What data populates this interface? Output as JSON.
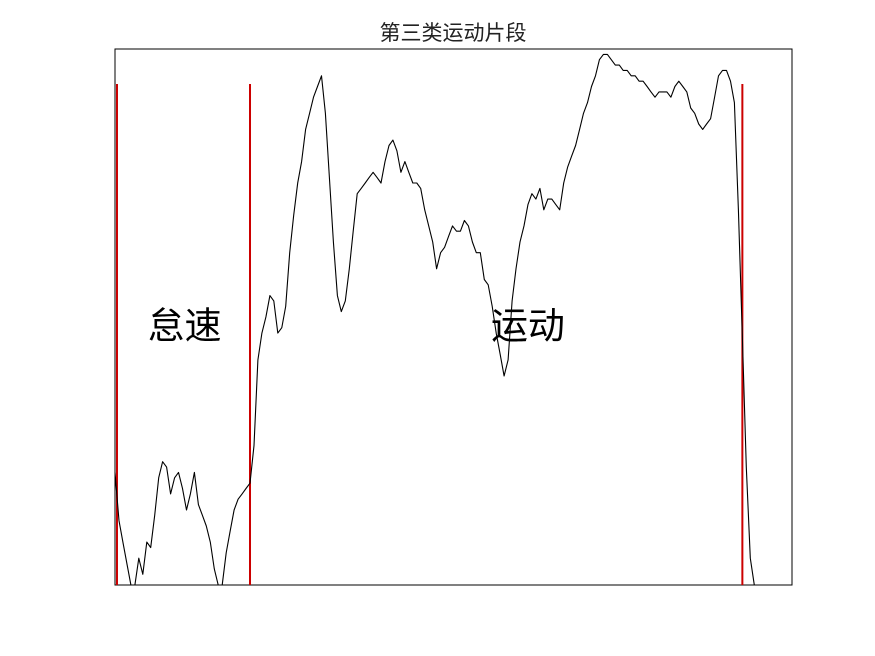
{
  "chart_data": {
    "type": "line",
    "title": "第三类运动片段",
    "xlabel": "",
    "ylabel": "",
    "xlim": [
      0,
      341
    ],
    "ylim": [
      0,
      100
    ],
    "grid": false,
    "axis_ticks": false,
    "colors": {
      "line": "#000000",
      "segment_lines": "#cc0000",
      "frame": "#000000"
    },
    "segment_boundaries_x": [
      1,
      68,
      316
    ],
    "annotations": [
      {
        "text": "怠速",
        "x": 35,
        "y": 46
      },
      {
        "text": "运动",
        "x": 208,
        "y": 46
      }
    ],
    "series": [
      {
        "x": [
          0,
          2,
          4,
          6,
          8,
          10,
          12,
          14,
          16,
          18,
          20,
          22,
          24,
          26,
          28,
          30,
          32,
          34,
          36,
          38,
          40,
          42,
          44,
          46,
          48,
          50,
          52,
          54,
          56,
          58,
          60,
          62,
          64,
          66,
          68,
          70,
          72,
          74,
          76,
          78,
          80,
          82,
          84,
          86,
          88,
          90,
          92,
          94,
          96,
          98,
          100,
          102,
          104,
          106,
          108,
          110,
          112,
          114,
          116,
          118,
          120,
          122,
          124,
          126,
          128,
          130,
          132,
          134,
          136,
          138,
          140,
          142,
          144,
          146,
          148,
          150,
          152,
          154,
          156,
          158,
          160,
          162,
          164,
          166,
          168,
          170,
          172,
          174,
          176,
          178,
          180,
          182,
          184,
          186,
          188,
          190,
          192,
          194,
          196,
          198,
          200,
          202,
          204,
          206,
          208,
          210,
          212,
          214,
          216,
          218,
          220,
          222,
          224,
          226,
          228,
          230,
          232,
          234,
          236,
          238,
          240,
          242,
          244,
          246,
          248,
          250,
          252,
          254,
          256,
          258,
          260,
          262,
          264,
          266,
          268,
          270,
          272,
          274,
          276,
          278,
          280,
          282,
          284,
          286,
          288,
          290,
          292,
          294,
          296,
          298,
          300,
          302,
          304,
          306,
          308,
          310,
          312,
          314,
          316,
          318,
          320,
          322,
          324,
          326,
          328,
          330,
          332,
          334,
          336,
          338,
          340
        ],
        "y": [
          21,
          12,
          8,
          4,
          0,
          0,
          5,
          2,
          8,
          7,
          13,
          20,
          23,
          22,
          17,
          20,
          21,
          18,
          14,
          17,
          21,
          15,
          13,
          11,
          8,
          3,
          0,
          0,
          6,
          10,
          14,
          16,
          17,
          18,
          19,
          26,
          42,
          47,
          50,
          54,
          53,
          47,
          48,
          52,
          62,
          69,
          75,
          79,
          85,
          88,
          91,
          93,
          95,
          88,
          76,
          64,
          54,
          51,
          53,
          59,
          66,
          73,
          74,
          75,
          76,
          77,
          76,
          75,
          79,
          82,
          83,
          81,
          77,
          79,
          77,
          75,
          75,
          74,
          70,
          67,
          64,
          59,
          62,
          63,
          65,
          67,
          66,
          66,
          68,
          67,
          64,
          62,
          62,
          57,
          56,
          52,
          47,
          43,
          39,
          42,
          53,
          59,
          64,
          67,
          71,
          73,
          72,
          74,
          70,
          72,
          72,
          71,
          70,
          75,
          78,
          80,
          82,
          85,
          88,
          90,
          93,
          95,
          98,
          99,
          99,
          98,
          97,
          97,
          96,
          96,
          95,
          95,
          94,
          94,
          93,
          92,
          91,
          92,
          92,
          92,
          91,
          93,
          94,
          93,
          92,
          89,
          88,
          86,
          85,
          86,
          87,
          91,
          95,
          96,
          96,
          94,
          90,
          70,
          46,
          22,
          5,
          0,
          0,
          0,
          0,
          0,
          0,
          0,
          0,
          0,
          0
        ],
        "note": ""
      }
    ]
  }
}
